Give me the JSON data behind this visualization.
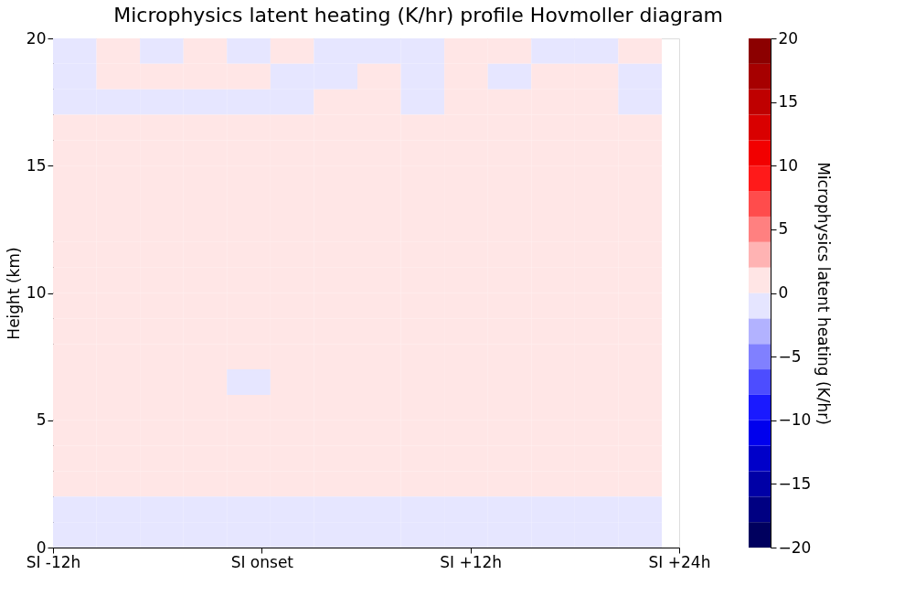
{
  "chart_data": {
    "type": "heatmap",
    "title": "Microphysics latent heating (K/hr) profile Hovmoller diagram",
    "ylabel": "Height (km)",
    "clabel": "Microphysics latent heating (K/hr)",
    "x": [
      -10.75,
      -8.25,
      -5.75,
      -3.25,
      -0.75,
      1.75,
      4.25,
      6.75,
      9.25,
      11.75,
      14.25,
      16.75,
      19.25,
      21.75
    ],
    "xlim": [
      -12,
      24
    ],
    "xticks": [
      {
        "value": -12,
        "label": "SI -12h"
      },
      {
        "value": 0,
        "label": "SI onset"
      },
      {
        "value": 12,
        "label": "SI +12h"
      },
      {
        "value": 24,
        "label": "SI +24h"
      }
    ],
    "ylim": [
      0,
      20
    ],
    "yticks": [
      0,
      5,
      10,
      15,
      20
    ],
    "clim": [
      -20,
      20
    ],
    "cticks": [
      -20,
      -15,
      -10,
      -5,
      0,
      5,
      10,
      15,
      20
    ],
    "cells": [
      [
        -1,
        1,
        -1,
        1,
        -1,
        1,
        -1,
        -1,
        -1,
        1,
        1,
        -1,
        -1,
        1
      ],
      [
        -1,
        1,
        1,
        1,
        1,
        -1,
        -1,
        1,
        -1,
        1,
        -1,
        1,
        1,
        -1
      ],
      [
        -1,
        -1,
        -1,
        -1,
        -1,
        -1,
        1,
        1,
        -1,
        1,
        1,
        1,
        1,
        -1
      ],
      [
        1,
        1,
        1,
        1,
        1,
        1,
        1,
        1,
        1,
        1,
        1,
        1,
        1,
        1
      ],
      [
        1,
        1,
        1,
        1,
        1,
        1,
        1,
        1,
        1,
        1,
        1,
        1,
        1,
        1
      ],
      [
        1,
        1,
        1,
        1,
        1,
        1,
        1,
        1,
        1,
        1,
        1,
        1,
        1,
        1
      ],
      [
        1,
        1,
        1,
        1,
        1,
        1,
        1,
        1,
        1,
        1,
        1,
        1,
        1,
        1
      ],
      [
        1,
        1,
        1,
        1,
        1,
        1,
        1,
        1,
        1,
        1,
        1,
        1,
        1,
        1
      ],
      [
        1,
        1,
        1,
        1,
        1,
        1,
        1,
        1,
        1,
        1,
        1,
        1,
        1,
        1
      ],
      [
        1,
        1,
        1,
        1,
        1,
        1,
        1,
        1,
        1,
        1,
        1,
        1,
        1,
        1
      ],
      [
        1,
        1,
        1,
        1,
        1,
        1,
        1,
        1,
        1,
        1,
        1,
        1,
        1,
        1
      ],
      [
        1,
        1,
        1,
        1,
        1,
        1,
        1,
        1,
        1,
        1,
        1,
        1,
        1,
        1
      ],
      [
        1,
        1,
        1,
        1,
        1,
        1,
        1,
        1,
        1,
        1,
        1,
        1,
        1,
        1
      ],
      [
        1,
        1,
        1,
        1,
        -1,
        1,
        1,
        1,
        1,
        1,
        1,
        1,
        1,
        1
      ],
      [
        1,
        1,
        1,
        1,
        1,
        1,
        1,
        1,
        1,
        1,
        1,
        1,
        1,
        1
      ],
      [
        1,
        1,
        1,
        1,
        1,
        1,
        1,
        1,
        1,
        1,
        1,
        1,
        1,
        1
      ],
      [
        1,
        1,
        1,
        1,
        1,
        1,
        1,
        1,
        1,
        1,
        1,
        1,
        1,
        1
      ],
      [
        1,
        1,
        1,
        1,
        1,
        1,
        1,
        1,
        1,
        1,
        1,
        1,
        1,
        1
      ],
      [
        -1,
        -1,
        -1,
        -1,
        -1,
        -1,
        -1,
        -1,
        -1,
        -1,
        -1,
        -1,
        -1,
        -1
      ],
      [
        -1,
        -1,
        -1,
        -1,
        -1,
        -1,
        -1,
        -1,
        -1,
        -1,
        -1,
        -1,
        -1,
        -1
      ]
    ]
  }
}
